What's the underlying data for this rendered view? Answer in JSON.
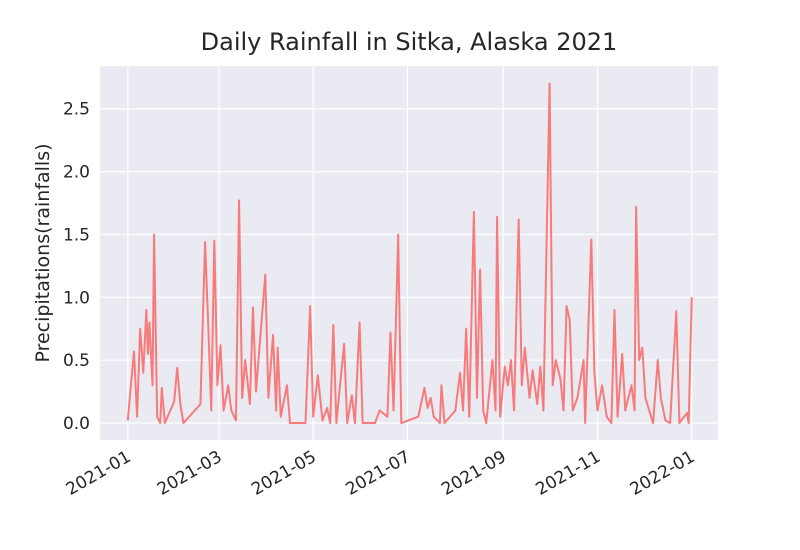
{
  "chart_data": {
    "type": "line",
    "title": "Daily Rainfall in Sitka, Alaska 2021",
    "ylabel": "Precipitations(rainfalls)",
    "x": [
      0,
      2,
      4,
      6,
      8,
      10,
      12,
      13,
      14,
      16,
      17,
      19,
      21,
      22,
      24,
      30,
      32,
      34,
      36,
      47,
      50,
      52,
      54,
      56,
      58,
      60,
      62,
      65,
      67,
      70,
      72,
      74,
      76,
      79,
      81,
      83,
      85,
      89,
      91,
      94,
      96,
      97,
      99,
      103,
      105,
      115,
      118,
      120,
      123,
      126,
      129,
      131,
      133,
      135,
      140,
      142,
      145,
      147,
      150,
      152,
      160,
      163,
      168,
      170,
      172,
      175,
      177,
      188,
      192,
      194,
      196,
      198,
      202,
      203,
      205,
      212,
      215,
      217,
      219,
      221,
      224,
      226,
      228,
      230,
      232,
      236,
      238,
      239,
      241,
      244,
      246,
      248,
      250,
      253,
      255,
      257,
      260,
      262,
      265,
      267,
      269,
      273,
      275,
      277,
      280,
      282,
      284,
      286,
      288,
      291,
      295,
      296,
      300,
      302,
      304,
      307,
      310,
      313,
      315,
      317,
      320,
      322,
      326,
      328,
      329,
      331,
      333,
      335,
      340,
      343,
      345,
      348,
      351,
      355,
      357,
      360,
      362,
      363,
      365
    ],
    "series": [
      {
        "name": "rainfall",
        "color": "#f77b7b",
        "values": [
          0.02,
          0.3,
          0.57,
          0.05,
          0.75,
          0.4,
          0.9,
          0.55,
          0.8,
          0.3,
          1.5,
          0.05,
          0.0,
          0.28,
          0.0,
          0.17,
          0.44,
          0.15,
          0.0,
          0.15,
          1.44,
          0.8,
          0.1,
          1.45,
          0.3,
          0.62,
          0.1,
          0.3,
          0.1,
          0.02,
          1.77,
          0.2,
          0.5,
          0.15,
          0.92,
          0.25,
          0.57,
          1.18,
          0.2,
          0.7,
          0.1,
          0.6,
          0.05,
          0.3,
          0.0,
          0.0,
          0.93,
          0.05,
          0.38,
          0.02,
          0.12,
          0.0,
          0.78,
          0.0,
          0.63,
          0.0,
          0.22,
          0.0,
          0.8,
          0.0,
          0.0,
          0.1,
          0.05,
          0.72,
          0.1,
          1.5,
          0.0,
          0.05,
          0.28,
          0.12,
          0.2,
          0.05,
          0.0,
          0.3,
          0.0,
          0.1,
          0.4,
          0.1,
          0.75,
          0.05,
          1.68,
          0.2,
          1.22,
          0.1,
          0.0,
          0.5,
          0.1,
          1.64,
          0.05,
          0.45,
          0.3,
          0.5,
          0.1,
          1.62,
          0.3,
          0.6,
          0.2,
          0.42,
          0.15,
          0.45,
          0.1,
          2.7,
          0.3,
          0.5,
          0.35,
          0.1,
          0.93,
          0.82,
          0.1,
          0.2,
          0.5,
          0.0,
          1.46,
          0.4,
          0.1,
          0.3,
          0.05,
          0.0,
          0.9,
          0.05,
          0.55,
          0.1,
          0.3,
          0.1,
          1.72,
          0.5,
          0.6,
          0.2,
          0.0,
          0.5,
          0.2,
          0.02,
          0.0,
          0.89,
          0.0,
          0.05,
          0.08,
          0.0,
          1.0
        ]
      }
    ],
    "xlim": [
      -18,
      382
    ],
    "xticks": [
      {
        "value": 0,
        "label": "2021-01"
      },
      {
        "value": 59,
        "label": "2021-03"
      },
      {
        "value": 120,
        "label": "2021-05"
      },
      {
        "value": 181,
        "label": "2021-07"
      },
      {
        "value": 243,
        "label": "2021-09"
      },
      {
        "value": 304,
        "label": "2021-11"
      },
      {
        "value": 365,
        "label": "2022-01"
      }
    ],
    "ylim": [
      -0.135,
      2.84
    ],
    "yticks": [
      {
        "value": 0,
        "label": "0.0"
      },
      {
        "value": 0.5,
        "label": "0.5"
      },
      {
        "value": 1,
        "label": "1.0"
      },
      {
        "value": 1.5,
        "label": "1.5"
      },
      {
        "value": 2,
        "label": "2.0"
      },
      {
        "value": 2.5,
        "label": "2.5"
      }
    ],
    "grid": true
  }
}
